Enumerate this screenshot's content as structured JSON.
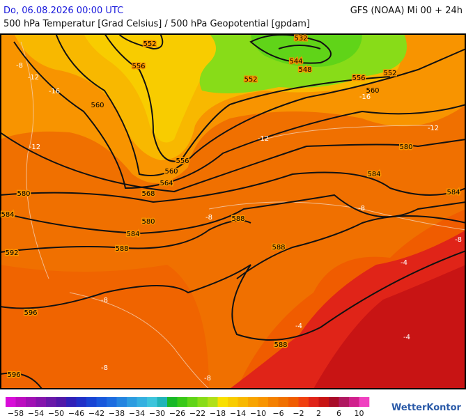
{
  "header": {
    "date": "Do, 06.08.2026 00:00 UTC",
    "model": "GFS (NOAA) Mi 00 + 24h",
    "title": "500 hPa Temperatur [Grad Celsius] / 500 hPa Geopotential [gpdam]"
  },
  "map": {
    "contour_labels": [
      "552",
      "556",
      "560",
      "532",
      "544",
      "548",
      "552",
      "556",
      "552",
      "560",
      "580",
      "584",
      "584",
      "556",
      "560",
      "564",
      "568",
      "580",
      "584",
      "580",
      "584",
      "588",
      "588",
      "588",
      "592",
      "596",
      "588",
      "596"
    ],
    "temperature_labels": [
      "-8",
      "-12",
      "-16",
      "-12",
      "-12",
      "-12",
      "-16",
      "-8",
      "-8",
      "-8",
      "-8",
      "-4",
      "-4",
      "-4",
      "-8",
      "-8"
    ]
  },
  "legend": {
    "colors": [
      "#d80cd8",
      "#bc0cc0",
      "#a010b4",
      "#8414ac",
      "#6818a8",
      "#5018a8",
      "#3020b8",
      "#2030c8",
      "#1844d4",
      "#1858dc",
      "#1c6ce0",
      "#2484e0",
      "#2c9ce0",
      "#34b0e0",
      "#3cc4dc",
      "#20b4b8",
      "#18b828",
      "#38c818",
      "#60d418",
      "#88dc18",
      "#b0e018",
      "#f8e000",
      "#f8cc00",
      "#f8b800",
      "#f8a400",
      "#f89400",
      "#f48000",
      "#f07000",
      "#f05c00",
      "#f04010",
      "#e02418",
      "#c81414",
      "#a80c28",
      "#b01860",
      "#d0208c",
      "#f040c0"
    ],
    "ticks": [
      "−58",
      "−54",
      "−50",
      "−46",
      "−42",
      "−38",
      "−34",
      "−30",
      "−26",
      "−22",
      "−18",
      "−14",
      "−10",
      "−6",
      "−2",
      "2",
      "6",
      "10"
    ],
    "logo": "WetterKontor"
  }
}
